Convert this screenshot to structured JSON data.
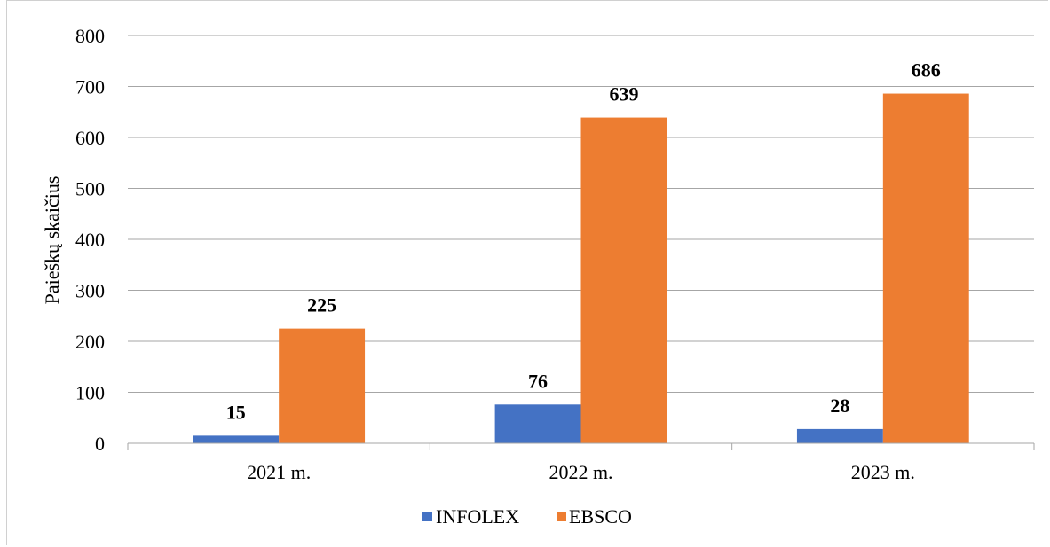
{
  "chart_data": {
    "type": "bar",
    "categories": [
      "2021 m.",
      "2022 m.",
      "2023 m."
    ],
    "series": [
      {
        "name": "INFOLEX",
        "values": [
          15,
          76,
          28
        ],
        "color": "#4472C4"
      },
      {
        "name": "EBSCO",
        "values": [
          225,
          639,
          686
        ],
        "color": "#ED7D31"
      }
    ],
    "title": "",
    "xlabel": "",
    "ylabel": "Paieškų skaičius",
    "ylim": [
      0,
      800
    ],
    "yticks": [
      "0",
      "100",
      "200",
      "300",
      "400",
      "500",
      "600",
      "700",
      "800"
    ],
    "grid": true,
    "legend_position": "bottom",
    "data_labels": true
  },
  "colors": {
    "gridline": "#a6a6a6",
    "axis": "#a6a6a6"
  }
}
